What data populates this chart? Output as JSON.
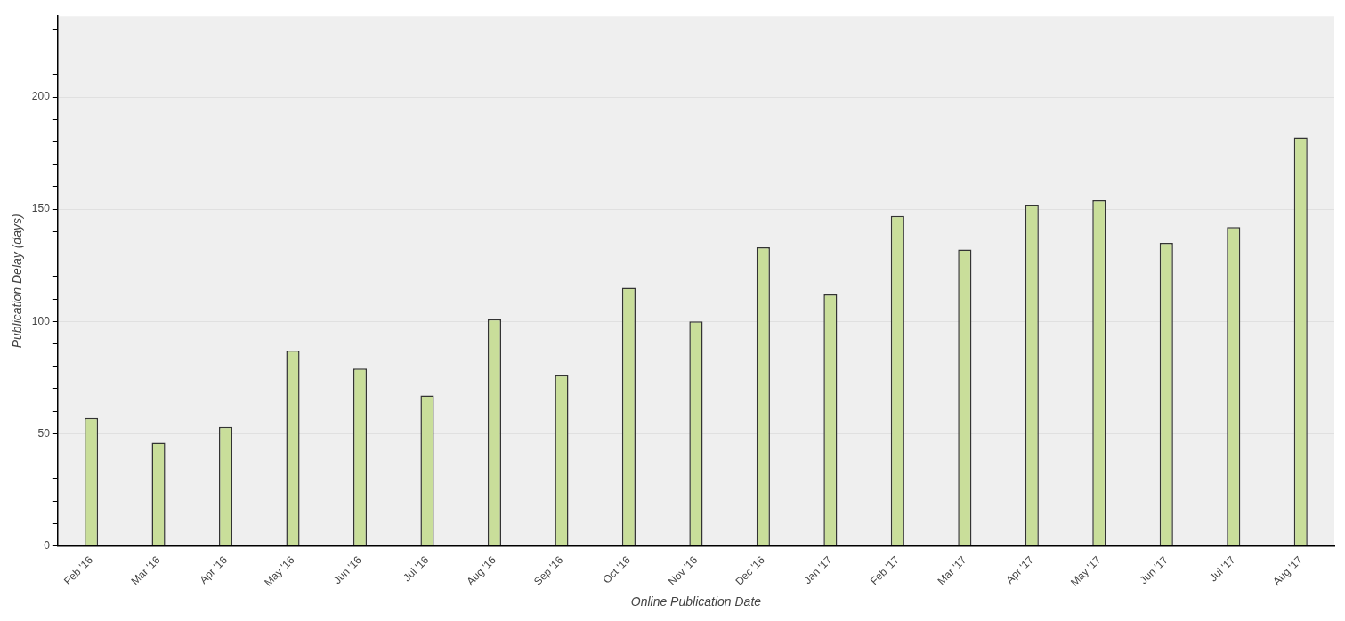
{
  "chart_data": {
    "type": "bar",
    "xlabel": "Online Publication Date",
    "ylabel": "Publication Delay (days)",
    "categories": [
      "Feb '16",
      "Mar '16",
      "Apr '16",
      "May '16",
      "Jun '16",
      "Jul '16",
      "Aug '16",
      "Sep '16",
      "Oct '16",
      "Nov '16",
      "Dec '16",
      "Jan '17",
      "Feb '17",
      "Mar '17",
      "Apr '17",
      "May '17",
      "Jun '17",
      "Jul '17",
      "Aug '17"
    ],
    "values": [
      57,
      46,
      53,
      87,
      79,
      67,
      101,
      76,
      115,
      100,
      133,
      112,
      147,
      132,
      152,
      154,
      135,
      142,
      182
    ],
    "color": "#c9de9a",
    "ylim": [
      0,
      236
    ],
    "yticks": [
      0,
      {
        "value": 10,
        "label": null
      },
      {
        "value": 20,
        "label": null
      },
      {
        "value": 30,
        "label": null
      },
      {
        "value": 40,
        "label": null
      },
      50,
      {
        "value": 60,
        "label": null
      },
      {
        "value": 70,
        "label": null
      },
      {
        "value": 80,
        "label": null
      },
      {
        "value": 90,
        "label": null
      },
      100,
      {
        "value": 110,
        "label": null
      },
      {
        "value": 120,
        "label": null
      },
      {
        "value": 130,
        "label": null
      },
      {
        "value": 140,
        "label": null
      },
      150,
      {
        "value": 160,
        "label": null
      },
      {
        "value": 170,
        "label": null
      },
      {
        "value": 180,
        "label": null
      },
      {
        "value": 190,
        "label": null
      },
      200,
      {
        "value": 210,
        "label": null
      },
      {
        "value": 220,
        "label": null
      },
      {
        "value": 230,
        "label": null
      }
    ],
    "grid": "y",
    "legend": false
  }
}
